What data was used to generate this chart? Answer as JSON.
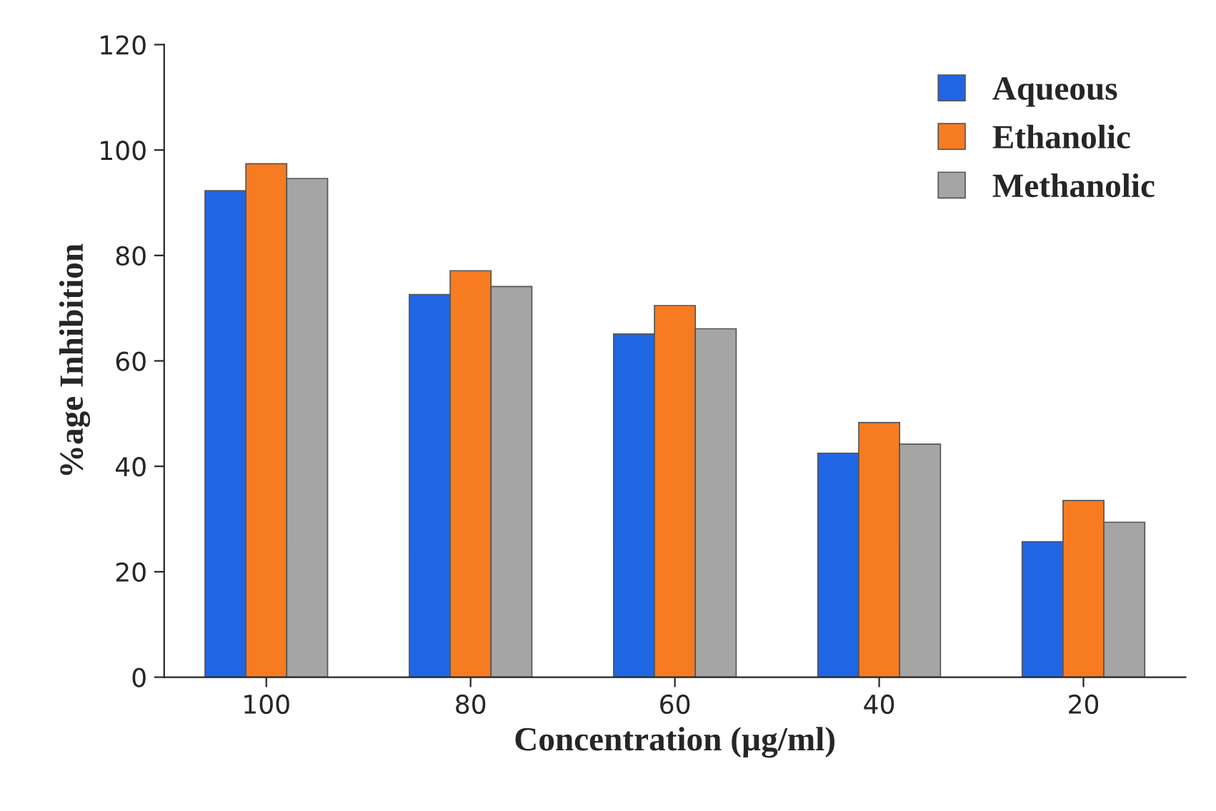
{
  "chart_data": {
    "type": "bar",
    "xlabel": "Concentration (µg/ml)",
    "ylabel": "%age Inhibition",
    "categories": [
      "100",
      "80",
      "60",
      "40",
      "20"
    ],
    "series": [
      {
        "name": "Aqueous",
        "color": "#1f66e5",
        "values": [
          92.3,
          72.6,
          65.1,
          42.5,
          25.7
        ]
      },
      {
        "name": "Ethanolic",
        "color": "#f77b21",
        "values": [
          97.4,
          77.1,
          70.5,
          48.3,
          33.5
        ]
      },
      {
        "name": "Methanolic",
        "color": "#a5a5a5",
        "values": [
          94.6,
          74.1,
          66.1,
          44.2,
          29.4
        ]
      }
    ],
    "ylim": [
      0,
      120
    ],
    "yticks": [
      0,
      20,
      40,
      60,
      80,
      100,
      120
    ],
    "grid": false,
    "legend": "top right"
  }
}
